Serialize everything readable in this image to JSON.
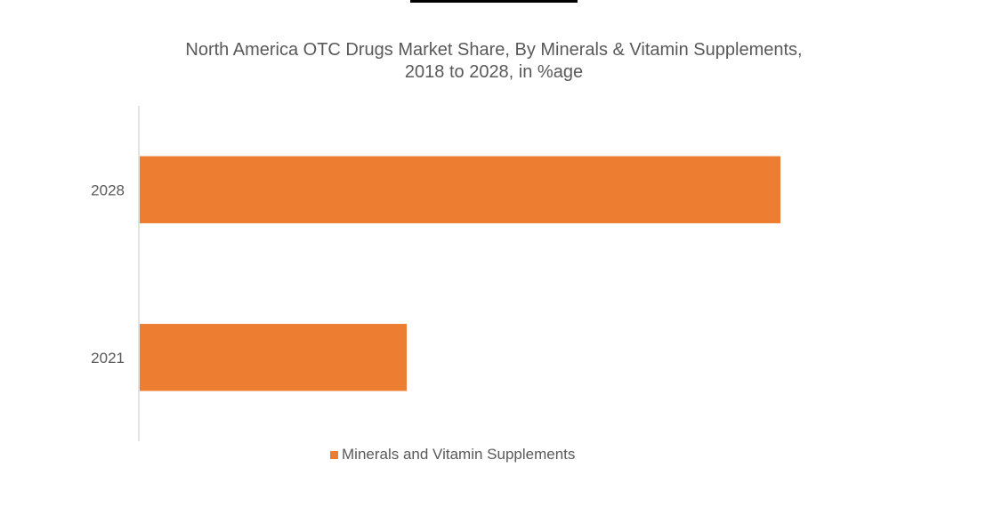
{
  "chart_data": {
    "type": "bar",
    "orientation": "horizontal",
    "title": "North America OTC Drugs Market Share, By Minerals & Vitamin Supplements, 2018 to 2028, in %age",
    "categories": [
      "2028",
      "2021"
    ],
    "series": [
      {
        "name": "Minerals and Vitamin Supplements",
        "values": [
          72,
          30
        ],
        "color": "#ED7D31"
      }
    ],
    "xlim": [
      0,
      100
    ],
    "grid": false,
    "legend_position": "bottom"
  },
  "colors": {
    "axis": "#D9D9D9",
    "text": "#595959",
    "header_bar": "#000000"
  }
}
